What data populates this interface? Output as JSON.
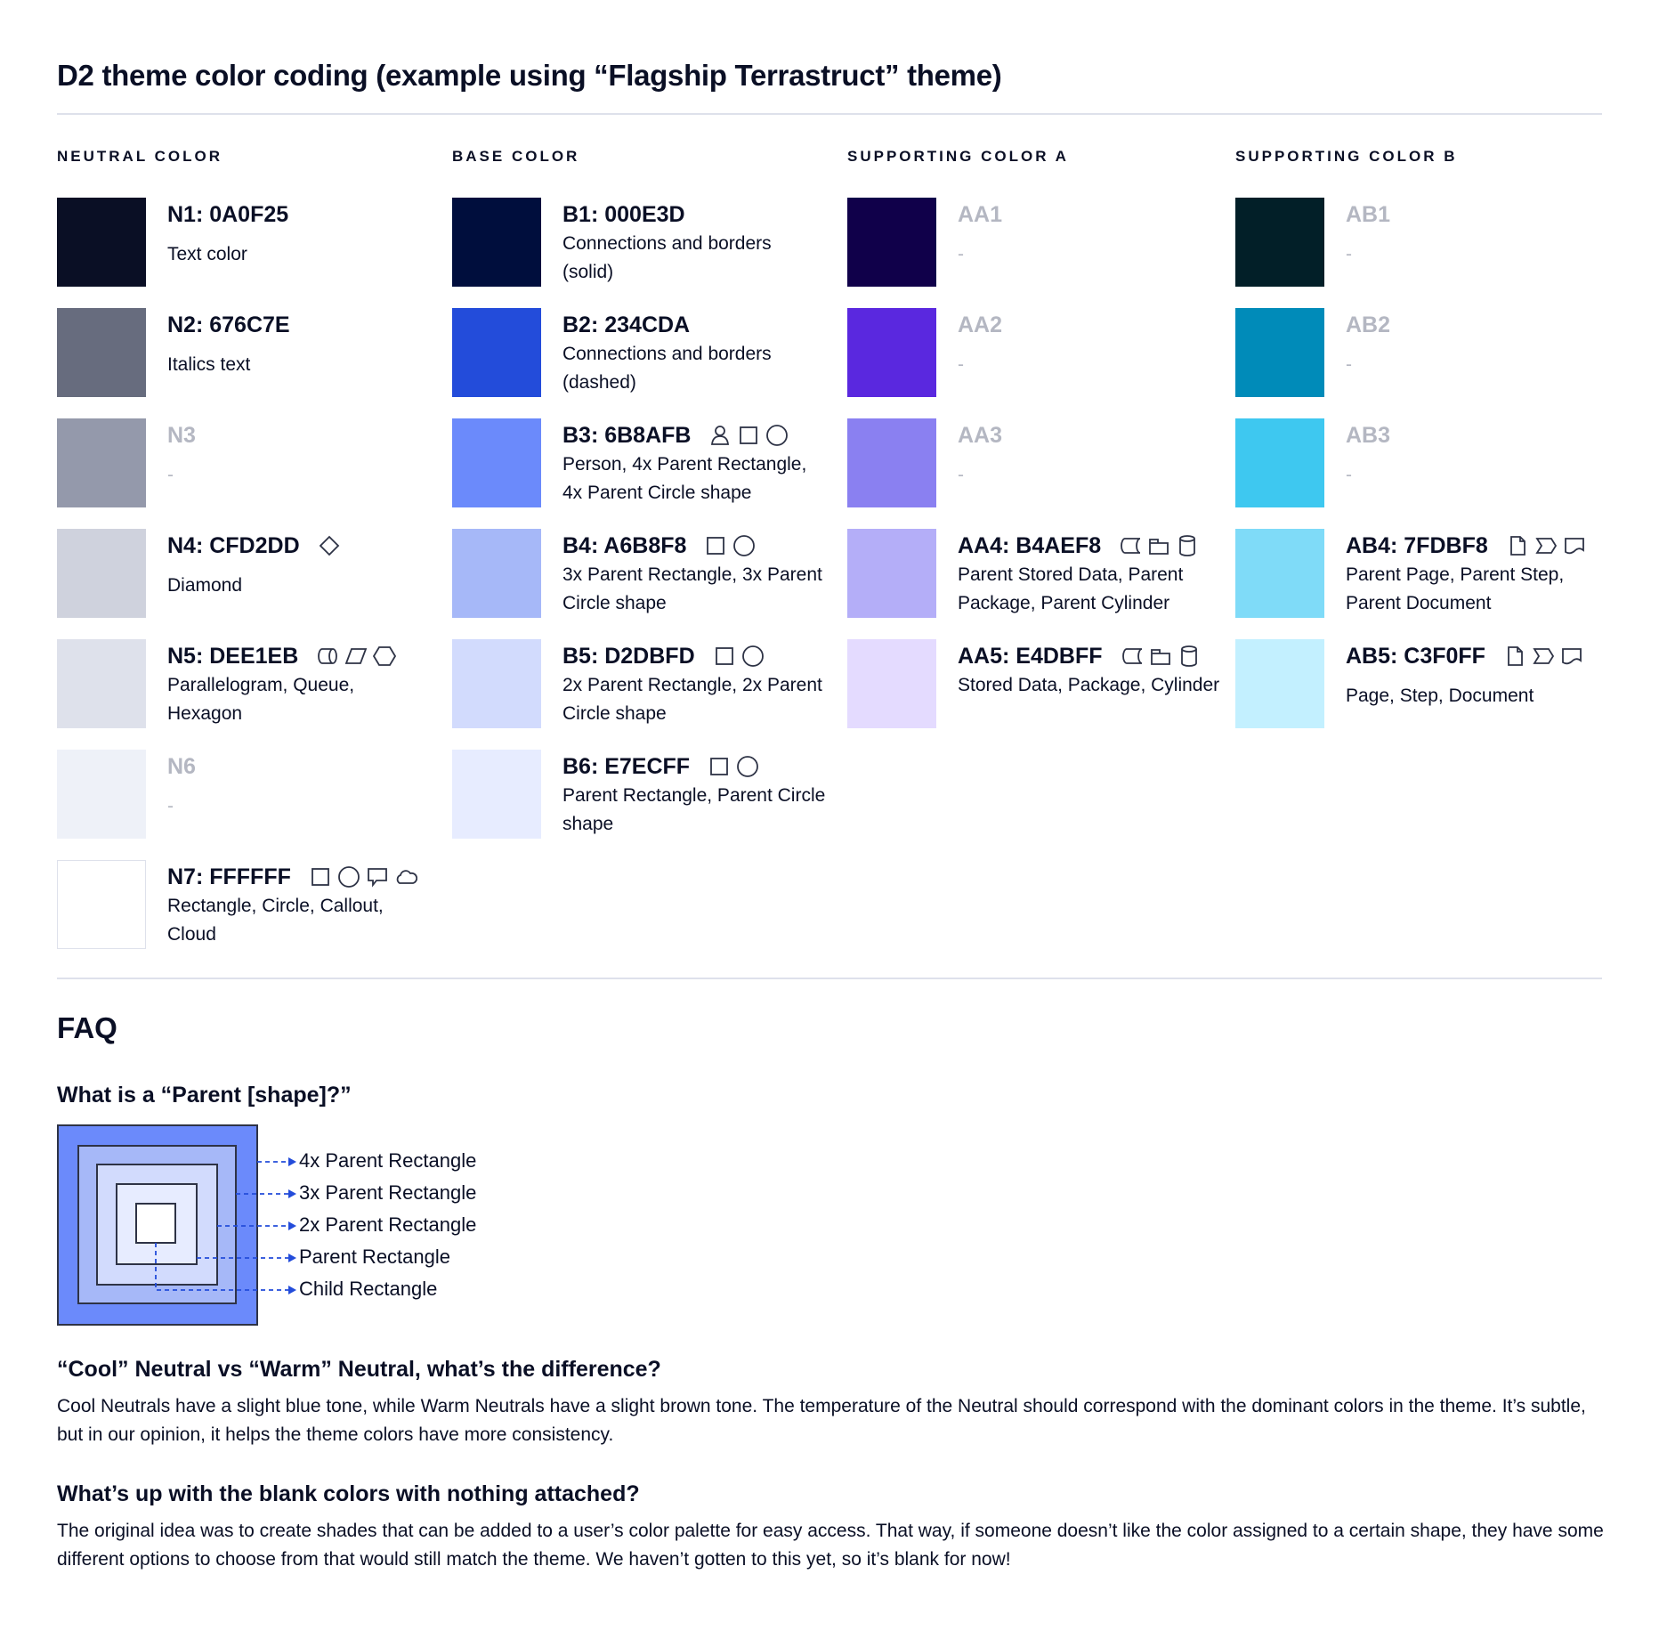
{
  "title": "D2 theme color coding (example using “Flagship Terrastruct” theme)",
  "columns": [
    {
      "label": "NEUTRAL COLOR",
      "rows": [
        {
          "hex": "N1: 0A0F25",
          "color": "#0A0F25",
          "desc": "Text color",
          "icons": []
        },
        {
          "hex": "N2: 676C7E",
          "color": "#676C7E",
          "desc": "Italics text",
          "icons": []
        },
        {
          "hex": "N3",
          "color": "#9499AB",
          "desc": "-",
          "icons": [],
          "blank": true
        },
        {
          "hex": "N4: CFD2DD",
          "color": "#CFD2DD",
          "desc": "Diamond",
          "icons": [
            "diamond-icon"
          ]
        },
        {
          "hex": "N5: DEE1EB",
          "color": "#DEE1EB",
          "desc": "Parallelogram, Queue, Hexagon",
          "icons": [
            "queue-icon",
            "parallelogram-icon",
            "hexagon-icon"
          ]
        },
        {
          "hex": "N6",
          "color": "#EEF1F8",
          "desc": "-",
          "icons": [],
          "blank": true
        },
        {
          "hex": "N7: FFFFFF",
          "color": "#FFFFFF",
          "desc": "Rectangle, Circle, Callout, Cloud",
          "icons": [
            "rectangle-icon",
            "circle-icon",
            "callout-icon",
            "cloud-icon"
          ],
          "border": true
        }
      ]
    },
    {
      "label": "BASE COLOR",
      "rows": [
        {
          "hex": "B1: 000E3D",
          "color": "#000E3D",
          "desc": "Connections and borders (solid)",
          "icons": []
        },
        {
          "hex": "B2: 234CDA",
          "color": "#234CDA",
          "desc": "Connections and borders (dashed)",
          "icons": []
        },
        {
          "hex": "B3: 6B8AFB",
          "color": "#6B8AFB",
          "desc": "Person, 4x Parent Rectangle, 4x Parent Circle shape",
          "icons": [
            "person-icon",
            "rectangle-icon",
            "circle-icon"
          ]
        },
        {
          "hex": "B4: A6B8F8",
          "color": "#A6B8F8",
          "desc": "3x Parent Rectangle, 3x Parent Circle shape",
          "icons": [
            "rectangle-icon",
            "circle-icon"
          ]
        },
        {
          "hex": "B5: D2DBFD",
          "color": "#D2DBFD",
          "desc": "2x Parent Rectangle, 2x Parent Circle shape",
          "icons": [
            "rectangle-icon",
            "circle-icon"
          ]
        },
        {
          "hex": "B6: E7ECFF",
          "color": "#E7ECFF",
          "desc": "Parent Rectangle, Parent Circle shape",
          "icons": [
            "rectangle-icon",
            "circle-icon"
          ]
        }
      ]
    },
    {
      "label": "SUPPORTING COLOR A",
      "rows": [
        {
          "hex": "AA1",
          "color": "#10004A",
          "desc": "-",
          "icons": [],
          "blank": true
        },
        {
          "hex": "AA2",
          "color": "#5A28DF",
          "desc": "-",
          "icons": [],
          "blank": true
        },
        {
          "hex": "AA3",
          "color": "#8A80F1",
          "desc": "-",
          "icons": [],
          "blank": true
        },
        {
          "hex": "AA4: B4AEF8",
          "color": "#B4AEF8",
          "desc": "Parent Stored Data, Parent Package,  Parent Cylinder",
          "icons": [
            "stored-data-icon",
            "package-icon",
            "cylinder-icon"
          ]
        },
        {
          "hex": "AA5: E4DBFF",
          "color": "#E4DBFF",
          "desc": "Stored Data, Package, Cylinder",
          "icons": [
            "stored-data-icon",
            "package-icon",
            "cylinder-icon"
          ]
        }
      ]
    },
    {
      "label": "SUPPORTING COLOR B",
      "rows": [
        {
          "hex": "AB1",
          "color": "#021F28",
          "desc": "-",
          "icons": [],
          "blank": true
        },
        {
          "hex": "AB2",
          "color": "#008BB9",
          "desc": "-",
          "icons": [],
          "blank": true
        },
        {
          "hex": "AB3",
          "color": "#3EC8F0",
          "desc": "-",
          "icons": [],
          "blank": true
        },
        {
          "hex": "AB4: 7FDBF8",
          "color": "#7FDBF8",
          "desc": "Parent Page, Parent Step, Parent Document",
          "icons": [
            "page-icon",
            "step-icon",
            "document-icon"
          ]
        },
        {
          "hex": "AB5: C3F0FF",
          "color": "#C3F0FF",
          "desc": "Page, Step, Document",
          "icons": [
            "page-icon",
            "step-icon",
            "document-icon"
          ]
        }
      ]
    }
  ],
  "faq": {
    "title": "FAQ",
    "q1": "What is a “Parent [shape]?”",
    "diagram_labels": [
      "4x Parent Rectangle",
      "3x Parent Rectangle",
      "2x Parent Rectangle",
      "Parent Rectangle",
      "Child Rectangle"
    ],
    "diagram_colors": [
      "#6B8AFB",
      "#A6B8F8",
      "#D2DBFD",
      "#E7ECFF",
      "#FFFFFF"
    ],
    "q2": "“Cool” Neutral vs “Warm” Neutral, what’s the difference?",
    "a2": "Cool Neutrals have a slight blue tone, while Warm Neutrals have a slight brown tone. The temperature of the Neutral should correspond with the dominant colors in the theme. It’s subtle, but in our opinion, it helps the theme colors have more consistency.",
    "q3": "What’s up with the blank colors with nothing attached?",
    "a3": "The original idea was to create shades that can be added to a user’s color palette for easy access. That way, if someone doesn’t like the color assigned to a certain shape, they have some different options to choose from that would still match the theme. We haven’t gotten to this yet, so it’s blank for now!"
  },
  "colors": {
    "text": "#0A0F25",
    "arrow": "#234CDA",
    "divider": "#DEE1EB",
    "border": "#2E3346"
  }
}
